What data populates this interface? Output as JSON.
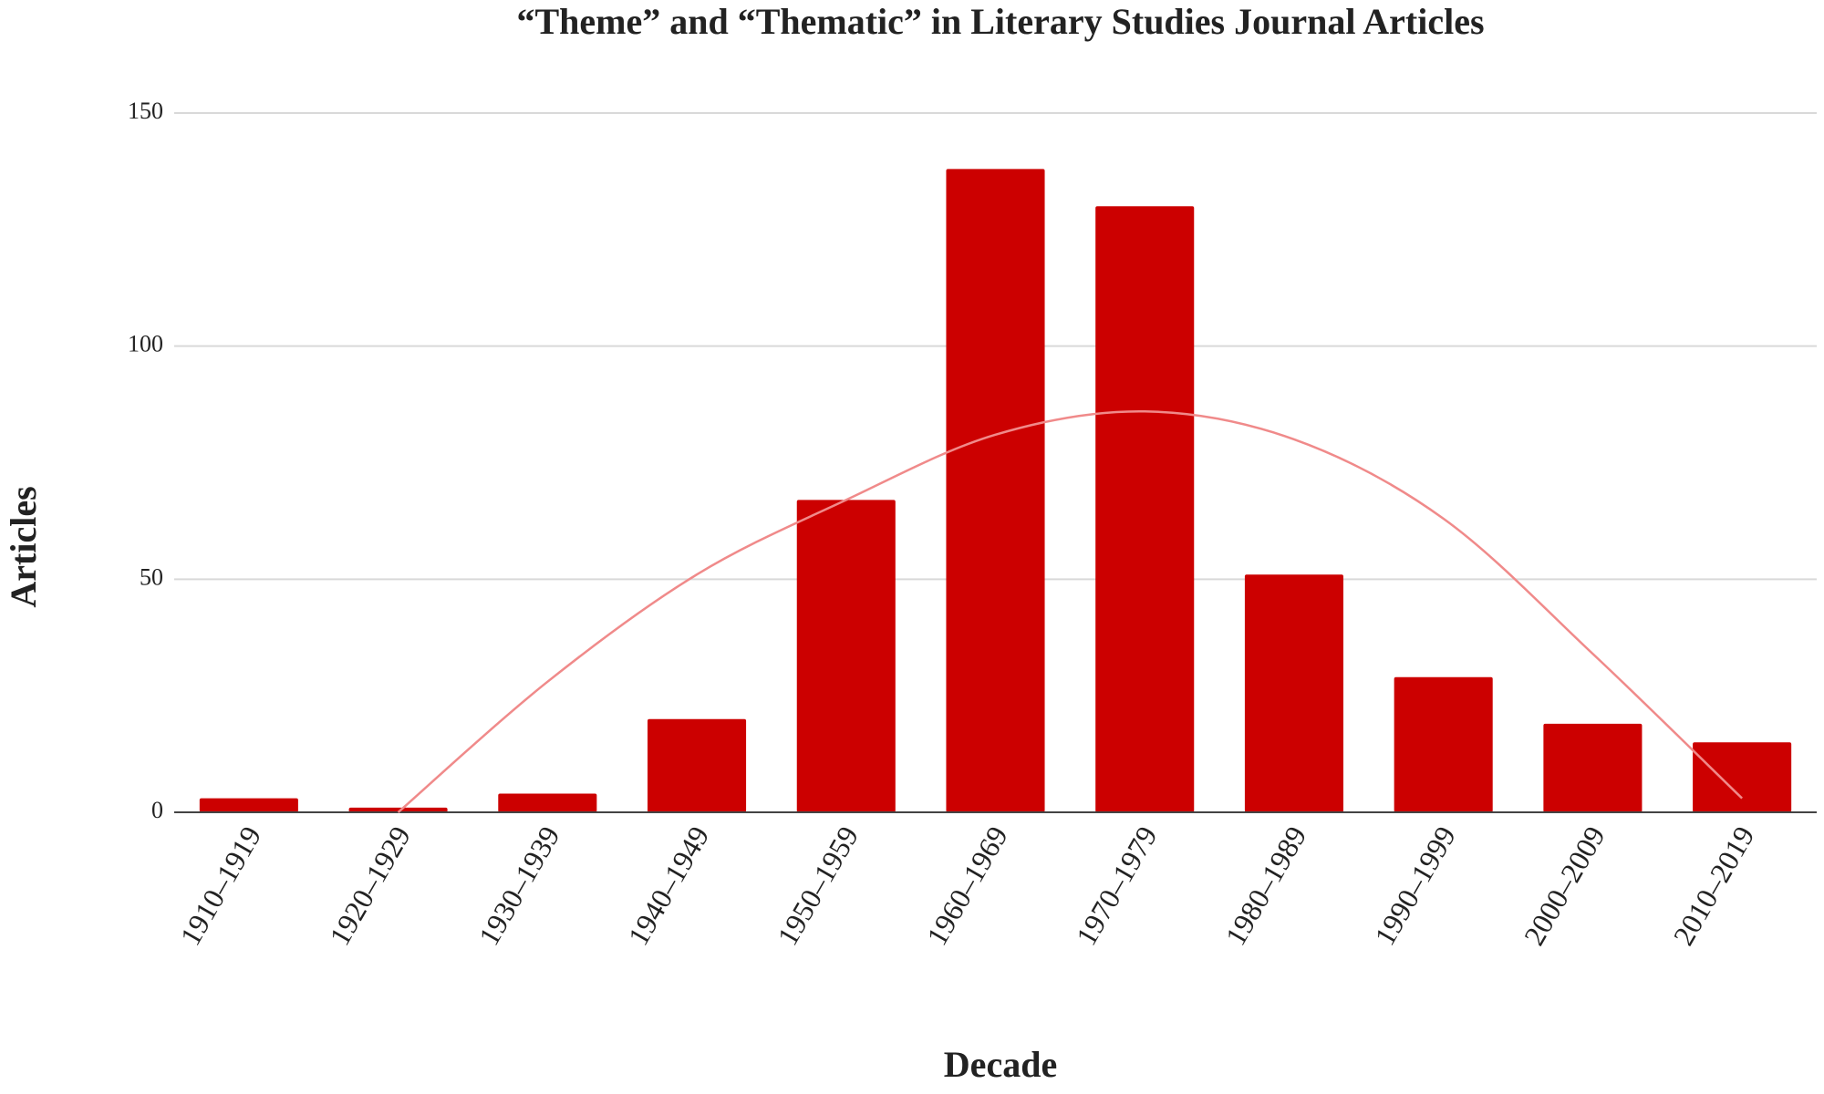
{
  "chart_data": {
    "type": "bar",
    "title": "“Theme” and “Thematic” in Literary Studies Journal Articles",
    "x_label": "Decade",
    "y_label": "Articles",
    "categories": [
      "1910–1919",
      "1920–1929",
      "1930–1939",
      "1940–1949",
      "1950–1959",
      "1960–1969",
      "1970–1979",
      "1980–1989",
      "1990–1999",
      "2000–2009",
      "2010–2019"
    ],
    "values": [
      3,
      1,
      4,
      20,
      67,
      138,
      130,
      51,
      29,
      19,
      15
    ],
    "color": "#cc0000",
    "trendline": {
      "color": "#f08a8a",
      "values": [
        null,
        0,
        28,
        51,
        67,
        81,
        86,
        80,
        63,
        34,
        3
      ]
    },
    "ylim": [
      0,
      150
    ],
    "yticks": [
      0,
      50,
      100,
      150
    ],
    "grid": true
  }
}
